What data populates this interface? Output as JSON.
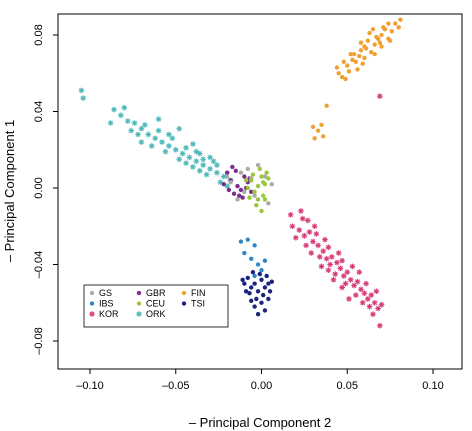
{
  "chart_data": {
    "type": "scatter",
    "title": "",
    "xlabel": "– Principal Component 2",
    "ylabel": "– Principal Component 1",
    "xlim": [
      -0.12,
      0.12
    ],
    "ylim": [
      -0.095,
      0.095
    ],
    "x_ticks": [
      -0.1,
      -0.05,
      0.0,
      0.05,
      0.1
    ],
    "x_tick_labels": [
      "–0.10",
      "–0.05",
      "0.00",
      "0.05",
      "0.10"
    ],
    "y_ticks": [
      0.08,
      0.04,
      0.0,
      -0.04,
      -0.08
    ],
    "y_tick_labels": [
      "0.08",
      "0.04",
      "0.00",
      "–0.04",
      "–0.08"
    ],
    "grid": false,
    "legend_position": "lower-left",
    "series": [
      {
        "name": "GS",
        "color": "#aaaaaa",
        "marker": "circle",
        "points": [
          [
            -0.012,
            0.008
          ],
          [
            -0.006,
            0.005
          ],
          [
            -0.018,
            0.003
          ],
          [
            0.002,
            0.006
          ],
          [
            -0.01,
            -0.002
          ],
          [
            -0.004,
            -0.004
          ],
          [
            0.006,
            0.002
          ],
          [
            -0.014,
            -0.006
          ],
          [
            -0.008,
            0.01
          ],
          [
            0.004,
            -0.008
          ],
          [
            -0.002,
            0.012
          ],
          [
            -0.02,
            0.006
          ]
        ]
      },
      {
        "name": "GBR",
        "color": "#7b2d8b",
        "marker": "circle",
        "points": [
          [
            -0.018,
            0.004
          ],
          [
            -0.014,
            0.001
          ],
          [
            -0.01,
            0.006
          ],
          [
            -0.016,
            -0.003
          ],
          [
            -0.012,
            -0.001
          ],
          [
            -0.008,
            0.003
          ],
          [
            -0.02,
            0.008
          ],
          [
            -0.006,
            -0.002
          ],
          [
            -0.015,
            0.009
          ],
          [
            -0.011,
            -0.005
          ],
          [
            -0.022,
            0.002
          ],
          [
            -0.009,
            0.0
          ],
          [
            -0.017,
            0.011
          ],
          [
            -0.013,
            -0.004
          ],
          [
            -0.019,
            -0.001
          ],
          [
            -0.007,
            0.005
          ]
        ]
      },
      {
        "name": "FIN",
        "color": "#f0a030",
        "marker": "circle",
        "points": [
          [
            0.045,
            0.06
          ],
          [
            0.05,
            0.064
          ],
          [
            0.055,
            0.066
          ],
          [
            0.06,
            0.068
          ],
          [
            0.052,
            0.07
          ],
          [
            0.058,
            0.072
          ],
          [
            0.064,
            0.071
          ],
          [
            0.066,
            0.075
          ],
          [
            0.062,
            0.077
          ],
          [
            0.068,
            0.078
          ],
          [
            0.07,
            0.08
          ],
          [
            0.072,
            0.083
          ],
          [
            0.076,
            0.082
          ],
          [
            0.074,
            0.086
          ],
          [
            0.078,
            0.086
          ],
          [
            0.081,
            0.088
          ],
          [
            0.06,
            0.074
          ],
          [
            0.056,
            0.062
          ],
          [
            0.048,
            0.066
          ],
          [
            0.066,
            0.07
          ],
          [
            0.07,
            0.074
          ],
          [
            0.063,
            0.081
          ],
          [
            0.074,
            0.078
          ],
          [
            0.059,
            0.065
          ],
          [
            0.053,
            0.067
          ],
          [
            0.057,
            0.069
          ],
          [
            0.061,
            0.073
          ],
          [
            0.067,
            0.079
          ],
          [
            0.071,
            0.084
          ],
          [
            0.075,
            0.077
          ],
          [
            0.044,
            0.063
          ],
          [
            0.047,
            0.058
          ],
          [
            0.051,
            0.061
          ],
          [
            0.054,
            0.07
          ],
          [
            0.058,
            0.076
          ],
          [
            0.069,
            0.076
          ],
          [
            0.065,
            0.083
          ],
          [
            0.08,
            0.084
          ],
          [
            0.049,
            0.057
          ],
          [
            0.033,
            0.03
          ],
          [
            0.036,
            0.027
          ],
          [
            0.03,
            0.032
          ],
          [
            0.035,
            0.033
          ],
          [
            0.038,
            0.043
          ],
          [
            0.031,
            0.026
          ]
        ]
      },
      {
        "name": "IBS",
        "color": "#2e86c8",
        "marker": "circle",
        "points": [
          [
            -0.012,
            -0.028
          ],
          [
            -0.008,
            -0.027
          ],
          [
            -0.004,
            -0.03
          ],
          [
            -0.006,
            -0.037
          ],
          [
            -0.002,
            -0.04
          ],
          [
            0.0,
            -0.043
          ],
          [
            -0.01,
            -0.034
          ],
          [
            0.002,
            -0.038
          ],
          [
            -0.004,
            -0.046
          ]
        ]
      },
      {
        "name": "CEU",
        "color": "#9ac838",
        "marker": "circle",
        "points": [
          [
            -0.006,
            0.004
          ],
          [
            -0.002,
            0.001
          ],
          [
            0.0,
            0.006
          ],
          [
            0.002,
            0.002
          ],
          [
            -0.004,
            -0.002
          ],
          [
            0.001,
            -0.004
          ],
          [
            -0.008,
            0.0
          ],
          [
            0.003,
            0.008
          ],
          [
            -0.001,
            0.01
          ],
          [
            -0.005,
            0.007
          ],
          [
            0.002,
            -0.006
          ],
          [
            -0.003,
            -0.009
          ],
          [
            0.0,
            -0.012
          ],
          [
            -0.007,
            -0.005
          ],
          [
            0.004,
            0.005
          ],
          [
            -0.009,
            0.004
          ],
          [
            0.001,
            0.003
          ],
          [
            -0.002,
            -0.006
          ]
        ]
      },
      {
        "name": "TSI",
        "color": "#1a237e",
        "marker": "circle",
        "points": [
          [
            -0.008,
            -0.047
          ],
          [
            -0.004,
            -0.05
          ],
          [
            0.0,
            -0.048
          ],
          [
            0.002,
            -0.052
          ],
          [
            -0.002,
            -0.054
          ],
          [
            -0.006,
            -0.052
          ],
          [
            0.004,
            -0.05
          ],
          [
            -0.01,
            -0.05
          ],
          [
            0.001,
            -0.056
          ],
          [
            -0.003,
            -0.058
          ],
          [
            -0.007,
            -0.055
          ],
          [
            0.003,
            -0.046
          ],
          [
            -0.001,
            -0.045
          ],
          [
            -0.005,
            -0.044
          ],
          [
            0.005,
            -0.054
          ],
          [
            -0.009,
            -0.054
          ],
          [
            0.0,
            -0.06
          ],
          [
            -0.004,
            -0.062
          ],
          [
            0.002,
            -0.064
          ],
          [
            -0.002,
            -0.066
          ],
          [
            0.004,
            -0.058
          ],
          [
            -0.011,
            -0.048
          ],
          [
            0.006,
            -0.049
          ],
          [
            -0.006,
            -0.059
          ]
        ]
      },
      {
        "name": "KOR",
        "color": "#d63c78",
        "marker": "asterisk",
        "points": [
          [
            0.018,
            -0.02
          ],
          [
            0.022,
            -0.022
          ],
          [
            0.025,
            -0.025
          ],
          [
            0.028,
            -0.023
          ],
          [
            0.03,
            -0.028
          ],
          [
            0.026,
            -0.03
          ],
          [
            0.033,
            -0.03
          ],
          [
            0.036,
            -0.033
          ],
          [
            0.034,
            -0.036
          ],
          [
            0.038,
            -0.037
          ],
          [
            0.041,
            -0.036
          ],
          [
            0.04,
            -0.04
          ],
          [
            0.044,
            -0.039
          ],
          [
            0.046,
            -0.042
          ],
          [
            0.043,
            -0.045
          ],
          [
            0.048,
            -0.046
          ],
          [
            0.05,
            -0.044
          ],
          [
            0.052,
            -0.048
          ],
          [
            0.049,
            -0.05
          ],
          [
            0.054,
            -0.051
          ],
          [
            0.056,
            -0.049
          ],
          [
            0.058,
            -0.053
          ],
          [
            0.055,
            -0.056
          ],
          [
            0.06,
            -0.055
          ],
          [
            0.062,
            -0.058
          ],
          [
            0.064,
            -0.056
          ],
          [
            0.066,
            -0.06
          ],
          [
            0.063,
            -0.062
          ],
          [
            0.068,
            -0.063
          ],
          [
            0.07,
            -0.061
          ],
          [
            0.024,
            -0.016
          ],
          [
            0.02,
            -0.026
          ],
          [
            0.031,
            -0.02
          ],
          [
            0.029,
            -0.034
          ],
          [
            0.037,
            -0.027
          ],
          [
            0.039,
            -0.043
          ],
          [
            0.045,
            -0.034
          ],
          [
            0.047,
            -0.052
          ],
          [
            0.053,
            -0.041
          ],
          [
            0.057,
            -0.044
          ],
          [
            0.059,
            -0.06
          ],
          [
            0.061,
            -0.05
          ],
          [
            0.067,
            -0.054
          ],
          [
            0.035,
            -0.041
          ],
          [
            0.042,
            -0.048
          ],
          [
            0.051,
            -0.058
          ],
          [
            0.017,
            -0.014
          ],
          [
            0.027,
            -0.017
          ],
          [
            0.032,
            -0.024
          ],
          [
            0.065,
            -0.066
          ],
          [
            0.069,
            -0.072
          ],
          [
            0.069,
            0.048
          ],
          [
            0.023,
            -0.012
          ],
          [
            0.039,
            -0.031
          ],
          [
            0.047,
            -0.038
          ]
        ]
      },
      {
        "name": "ORK",
        "color": "#4fb8b8",
        "marker": "asterisk",
        "points": [
          [
            -0.105,
            0.051
          ],
          [
            -0.104,
            0.047
          ],
          [
            -0.086,
            0.041
          ],
          [
            -0.082,
            0.038
          ],
          [
            -0.078,
            0.035
          ],
          [
            -0.074,
            0.034
          ],
          [
            -0.07,
            0.031
          ],
          [
            -0.066,
            0.028
          ],
          [
            -0.062,
            0.026
          ],
          [
            -0.058,
            0.024
          ],
          [
            -0.054,
            0.022
          ],
          [
            -0.05,
            0.02
          ],
          [
            -0.046,
            0.018
          ],
          [
            -0.042,
            0.016
          ],
          [
            -0.038,
            0.014
          ],
          [
            -0.034,
            0.012
          ],
          [
            -0.03,
            0.01
          ],
          [
            -0.026,
            0.008
          ],
          [
            -0.022,
            0.006
          ],
          [
            -0.018,
            0.004
          ],
          [
            -0.076,
            0.03
          ],
          [
            -0.072,
            0.028
          ],
          [
            -0.068,
            0.033
          ],
          [
            -0.064,
            0.022
          ],
          [
            -0.06,
            0.03
          ],
          [
            -0.056,
            0.019
          ],
          [
            -0.052,
            0.026
          ],
          [
            -0.048,
            0.015
          ],
          [
            -0.044,
            0.021
          ],
          [
            -0.04,
            0.011
          ],
          [
            -0.036,
            0.018
          ],
          [
            -0.032,
            0.007
          ],
          [
            -0.028,
            0.014
          ],
          [
            -0.024,
            0.003
          ],
          [
            -0.06,
            0.036
          ],
          [
            -0.048,
            0.031
          ],
          [
            -0.04,
            0.023
          ],
          [
            -0.036,
            0.009
          ],
          [
            -0.044,
            0.013
          ],
          [
            -0.088,
            0.034
          ],
          [
            -0.08,
            0.042
          ],
          [
            -0.07,
            0.024
          ],
          [
            -0.054,
            0.028
          ],
          [
            -0.03,
            0.016
          ],
          [
            -0.026,
            0.012
          ],
          [
            -0.02,
            0.001
          ],
          [
            -0.038,
            0.019
          ],
          [
            -0.034,
            0.015
          ]
        ]
      }
    ]
  }
}
